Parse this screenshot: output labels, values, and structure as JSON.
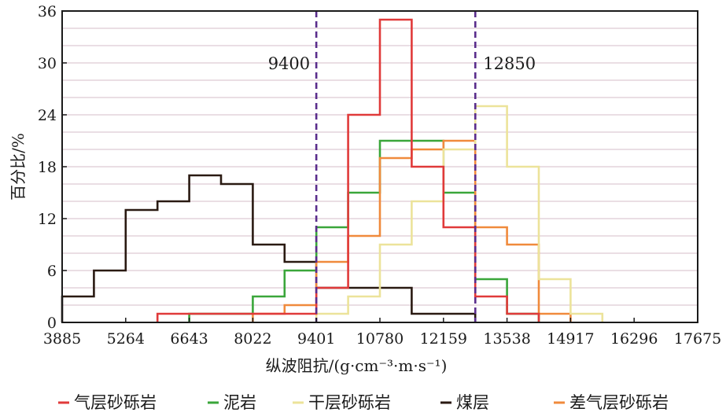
{
  "chart_data": {
    "type": "line",
    "xlabel": "纵波阻抗/(g·cm⁻³·m·s⁻¹)",
    "ylabel": "百分比/%",
    "ylim": [
      0,
      36
    ],
    "xlim": [
      3885,
      17675
    ],
    "x_ticks": [
      3885,
      5264,
      6643,
      8022,
      9401,
      10780,
      12159,
      13538,
      14917,
      16296,
      17675
    ],
    "y_ticks": [
      0,
      6,
      12,
      18,
      24,
      30,
      36
    ],
    "bin_edges": [
      3885,
      4574.5,
      5264,
      5953.5,
      6643,
      7332.5,
      8022,
      8711.5,
      9401,
      10090.5,
      10780,
      11469.5,
      12159,
      12848.5,
      13538,
      14227.5,
      14917,
      15606.5,
      16296
    ],
    "grid": true,
    "legend_position": "bottom",
    "annotations": [
      {
        "text": "9400",
        "x": 9400
      },
      {
        "text": "12850",
        "x": 12850
      }
    ],
    "series": [
      {
        "name": "煤层",
        "color": "#2a1a12",
        "values": [
          3,
          6,
          13,
          14,
          17,
          16,
          9,
          7,
          4,
          4,
          4,
          1,
          1,
          0,
          0,
          0,
          0,
          0
        ]
      },
      {
        "name": "泥岩",
        "color": "#3aa63a",
        "values": [
          0,
          0,
          0,
          0,
          1,
          1,
          3,
          6,
          11,
          15,
          21,
          21,
          15,
          5,
          1,
          0,
          0,
          0
        ]
      },
      {
        "name": "差气层砂砾岩",
        "color": "#f08a3c",
        "values": [
          0,
          0,
          0,
          0,
          0,
          0,
          1,
          2,
          7,
          10,
          19,
          20,
          21,
          11,
          9,
          1,
          0,
          0
        ]
      },
      {
        "name": "干层砂砾岩",
        "color": "#ece39a",
        "values": [
          0,
          0,
          0,
          0,
          0,
          0,
          0,
          0,
          1,
          3,
          9,
          14,
          20,
          25,
          18,
          5,
          1,
          0
        ]
      },
      {
        "name": "气层砂砾岩",
        "color": "#e03a3a",
        "values": [
          0,
          0,
          0,
          1,
          1,
          1,
          1,
          1,
          4,
          24,
          35,
          18,
          11,
          3,
          1,
          0,
          0,
          0
        ]
      }
    ],
    "legend_order": [
      "气层砂砾岩",
      "泥岩",
      "干层砂砾岩",
      "煤层",
      "差气层砂砾岩"
    ]
  }
}
